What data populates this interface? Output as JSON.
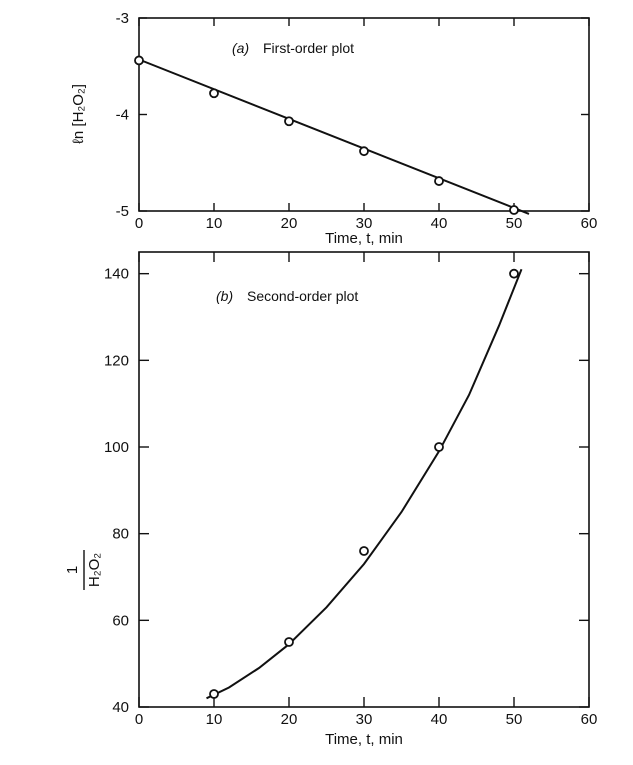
{
  "chart_data": [
    {
      "type": "scatter",
      "panel": "(a)",
      "title": "First-order plot",
      "xlabel": "Time, t, min",
      "ylabel": "ℓn [H₂O₂]",
      "xlim": [
        0,
        60
      ],
      "ylim": [
        -5,
        -3
      ],
      "xticks": [
        0,
        10,
        20,
        30,
        40,
        50,
        60
      ],
      "yticks": [
        -5,
        -4,
        -3
      ],
      "series": [
        {
          "x": [
            0,
            10,
            20,
            30,
            40,
            50
          ],
          "y": [
            -3.44,
            -3.78,
            -4.07,
            -4.38,
            -4.69,
            -4.99
          ]
        }
      ],
      "fit_line": {
        "x": [
          0,
          52
        ],
        "y": [
          -3.43,
          -5.03
        ]
      }
    },
    {
      "type": "scatter",
      "panel": "(b)",
      "title": "Second-order plot",
      "xlabel": "Time, t, min",
      "ylabel_numerator": "1",
      "ylabel_denominator": "H₂O₂",
      "xlim": [
        0,
        60
      ],
      "ylim": [
        40,
        145
      ],
      "xticks": [
        0,
        10,
        20,
        30,
        40,
        50,
        60
      ],
      "yticks": [
        40,
        60,
        80,
        100,
        120,
        140
      ],
      "series": [
        {
          "x": [
            10,
            20,
            30,
            40,
            50
          ],
          "y": [
            43,
            55,
            76,
            100,
            140
          ]
        }
      ],
      "fit_curve": {
        "x": [
          9,
          12,
          16,
          20,
          25,
          30,
          35,
          40,
          44,
          48,
          51
        ],
        "y": [
          42,
          44.5,
          49,
          54.5,
          63,
          73,
          85,
          99,
          112,
          128,
          141
        ]
      }
    }
  ]
}
